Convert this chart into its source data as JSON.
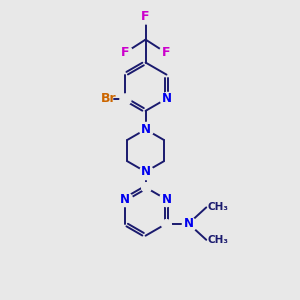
{
  "bg_color": "#e8e8e8",
  "bond_color": "#1a1a6e",
  "bond_width": 1.4,
  "N_color": "#0000ee",
  "Br_color": "#cc6600",
  "F_color": "#cc00cc",
  "font_size": 8.5,
  "fig_size": [
    3.0,
    3.0
  ],
  "dpi": 100,
  "xlim": [
    0,
    10
  ],
  "ylim": [
    0,
    10
  ]
}
